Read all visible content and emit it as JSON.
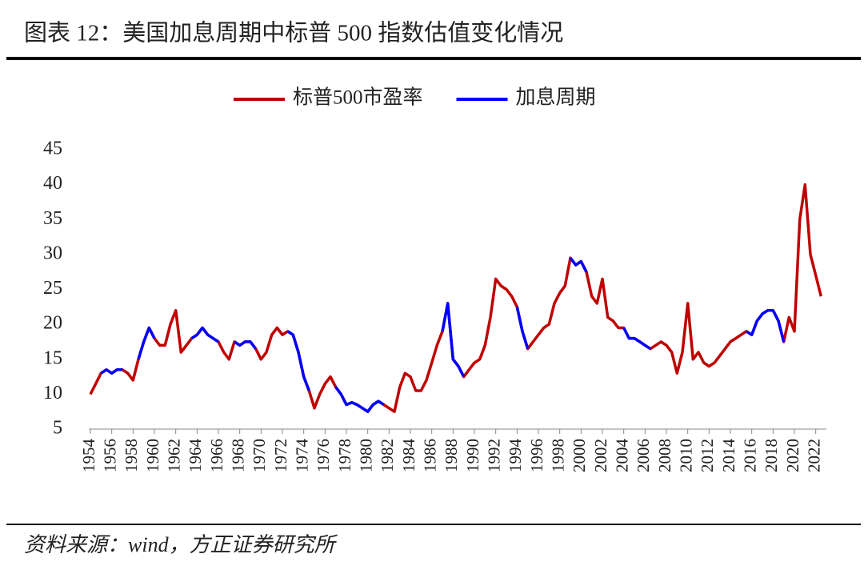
{
  "chart_data": {
    "type": "line",
    "title": "图表 12：美国加息周期中标普 500 指数估值变化情况",
    "source": "资料来源：wind，方正证券研究所",
    "x": [
      1954,
      1954.5,
      1955,
      1955.5,
      1956,
      1956.5,
      1957,
      1957.5,
      1958,
      1958.5,
      1959,
      1959.5,
      1960,
      1960.5,
      1961,
      1961.5,
      1962,
      1962.5,
      1963,
      1963.5,
      1964,
      1964.5,
      1965,
      1965.5,
      1966,
      1966.5,
      1967,
      1967.5,
      1968,
      1968.5,
      1969,
      1969.5,
      1970,
      1970.5,
      1971,
      1971.5,
      1972,
      1972.5,
      1973,
      1973.5,
      1974,
      1974.5,
      1975,
      1975.5,
      1976,
      1976.5,
      1977,
      1977.5,
      1978,
      1978.5,
      1979,
      1979.5,
      1980,
      1980.5,
      1981,
      1981.5,
      1982,
      1982.5,
      1983,
      1983.5,
      1984,
      1984.5,
      1985,
      1985.5,
      1986,
      1986.5,
      1987,
      1987.5,
      1988,
      1988.5,
      1989,
      1989.5,
      1990,
      1990.5,
      1991,
      1991.5,
      1992,
      1992.5,
      1993,
      1993.5,
      1994,
      1994.5,
      1995,
      1995.5,
      1996,
      1996.5,
      1997,
      1997.5,
      1998,
      1998.5,
      1999,
      1999.5,
      2000,
      2000.5,
      2001,
      2001.5,
      2002,
      2002.5,
      2003,
      2003.5,
      2004,
      2004.5,
      2005,
      2005.5,
      2006,
      2006.5,
      2007,
      2007.5,
      2008,
      2008.5,
      2009,
      2009.5,
      2010,
      2010.5,
      2011,
      2011.5,
      2012,
      2012.5,
      2013,
      2013.5,
      2014,
      2014.5,
      2015,
      2015.5,
      2016,
      2016.5,
      2017,
      2017.5,
      2018,
      2018.5,
      2019,
      2019.5,
      2020,
      2020.5,
      2021,
      2021.5,
      2022,
      2022.5
    ],
    "series": [
      {
        "name": "标普500市盈率",
        "color": "#c00000",
        "values": [
          10,
          11.5,
          13,
          13.5,
          13,
          13.5,
          13.5,
          13,
          12,
          15,
          17.5,
          19.5,
          18,
          17,
          17,
          20,
          22,
          16,
          17,
          18,
          18.5,
          19.5,
          18.5,
          18,
          17.5,
          16,
          15,
          17.5,
          17,
          17.5,
          17.5,
          16.5,
          15,
          16,
          18.5,
          19.5,
          18.5,
          19,
          18.5,
          16,
          12.5,
          10.5,
          8,
          10,
          11.5,
          12.5,
          11,
          10,
          8.5,
          8.8,
          8.5,
          8,
          7.5,
          8.5,
          9,
          8.5,
          8,
          7.5,
          11,
          13,
          12.5,
          10.5,
          10.5,
          12,
          14.5,
          17,
          19,
          23,
          15,
          14,
          12.5,
          13.5,
          14.5,
          15,
          17,
          21,
          26.5,
          25.5,
          25,
          24,
          22.5,
          19,
          16.5,
          17.5,
          18.5,
          19.5,
          20,
          23,
          24.5,
          25.5,
          29.5,
          28.5,
          29,
          27.5,
          24,
          23,
          26.5,
          21,
          20.5,
          19.5,
          19.5,
          18,
          18,
          17.5,
          17,
          16.5,
          17,
          17.5,
          17,
          16,
          13,
          16,
          23,
          15,
          16,
          14.5,
          14,
          14.5,
          15.5,
          16.5,
          17.5,
          18,
          18.5,
          19,
          18.5,
          20.5,
          21.5,
          22,
          22,
          20.5,
          17.5,
          21,
          19,
          35,
          40,
          30,
          27,
          24
        ]
      },
      {
        "name": "加息周期",
        "color": "#0000ff",
        "values": [
          null,
          null,
          13,
          13.5,
          13,
          13.5,
          13.5,
          null,
          null,
          15,
          17.5,
          19.5,
          18,
          null,
          null,
          null,
          null,
          null,
          null,
          18,
          18.5,
          19.5,
          18.5,
          18,
          17.5,
          null,
          null,
          17.5,
          17,
          17.5,
          17.5,
          16.5,
          null,
          null,
          null,
          null,
          null,
          19,
          18.5,
          16,
          12.5,
          10.5,
          null,
          null,
          null,
          null,
          11,
          10,
          8.5,
          8.8,
          8.5,
          8,
          7.5,
          8.5,
          9,
          8.5,
          null,
          null,
          null,
          null,
          null,
          null,
          null,
          null,
          null,
          null,
          19,
          23,
          15,
          14,
          12.5,
          null,
          null,
          null,
          null,
          null,
          null,
          null,
          null,
          null,
          22.5,
          19,
          16.5,
          null,
          null,
          null,
          null,
          null,
          null,
          null,
          29.5,
          28.5,
          29,
          27.5,
          null,
          null,
          null,
          null,
          null,
          null,
          19.5,
          18,
          18,
          17.5,
          17,
          16.5,
          null,
          null,
          null,
          null,
          null,
          null,
          null,
          null,
          null,
          null,
          null,
          null,
          null,
          null,
          null,
          null,
          null,
          19,
          18.5,
          20.5,
          21.5,
          22,
          22,
          20.5,
          17.5,
          null,
          null,
          null,
          null,
          null,
          null,
          null
        ]
      }
    ],
    "xlim": [
      1954,
      2023
    ],
    "xticks": [
      1954,
      1956,
      1958,
      1960,
      1962,
      1964,
      1966,
      1968,
      1970,
      1972,
      1974,
      1976,
      1978,
      1980,
      1982,
      1984,
      1986,
      1988,
      1990,
      1992,
      1994,
      1996,
      1998,
      2000,
      2002,
      2004,
      2006,
      2008,
      2010,
      2012,
      2014,
      2016,
      2018,
      2020,
      2022
    ],
    "ylim": [
      5,
      45
    ],
    "yticks": [
      5,
      10,
      15,
      20,
      25,
      30,
      35,
      40,
      45
    ],
    "legend": "top"
  }
}
